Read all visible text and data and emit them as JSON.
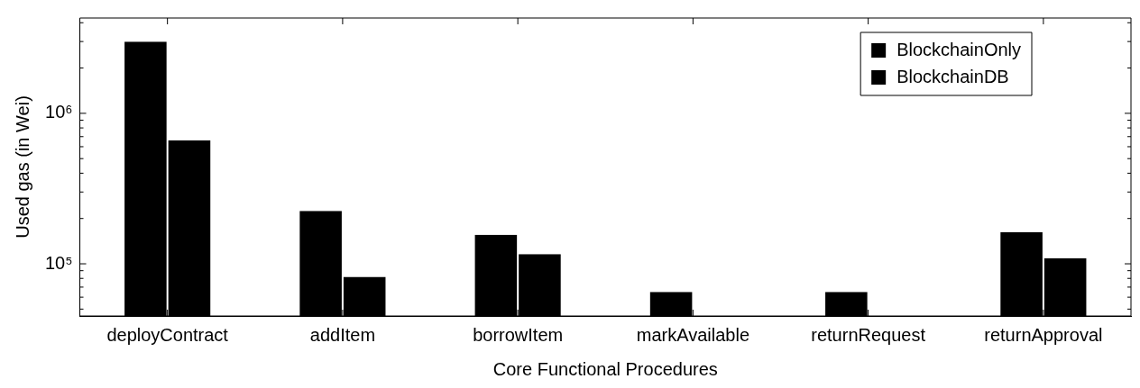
{
  "chart_data": {
    "type": "bar",
    "xlabel": "Core Functional Procedures",
    "ylabel": "Used gas (in Wei)",
    "categories": [
      "deployContract",
      "addItem",
      "borrowItem",
      "markAvailable",
      "returnRequest",
      "returnApproval"
    ],
    "series": [
      {
        "name": "BlockchainOnly",
        "color": "#000000",
        "values": [
          3000000,
          225000,
          156000,
          65000,
          65000,
          162000
        ]
      },
      {
        "name": "BlockchainDB",
        "color": "#000000",
        "values": [
          660000,
          82000,
          116000,
          null,
          null,
          109000
        ]
      }
    ],
    "log": "y",
    "ylim": [
      45000,
      4300000
    ],
    "yticks": [
      {
        "value": 50000,
        "label": null
      },
      {
        "value": 60000,
        "label": null
      },
      {
        "value": 70000,
        "label": null
      },
      {
        "value": 80000,
        "label": null
      },
      {
        "value": 90000,
        "label": null
      },
      {
        "value": 100000,
        "label": "10⁵"
      },
      {
        "value": 200000,
        "label": null
      },
      {
        "value": 300000,
        "label": null
      },
      {
        "value": 400000,
        "label": null
      },
      {
        "value": 500000,
        "label": null
      },
      {
        "value": 600000,
        "label": null
      },
      {
        "value": 700000,
        "label": null
      },
      {
        "value": 800000,
        "label": null
      },
      {
        "value": 900000,
        "label": null
      },
      {
        "value": 1000000,
        "label": "10⁶"
      },
      {
        "value": 2000000,
        "label": null
      },
      {
        "value": 3000000,
        "label": null
      },
      {
        "value": 4000000,
        "label": null
      }
    ],
    "legend": "top right",
    "grid": false
  }
}
